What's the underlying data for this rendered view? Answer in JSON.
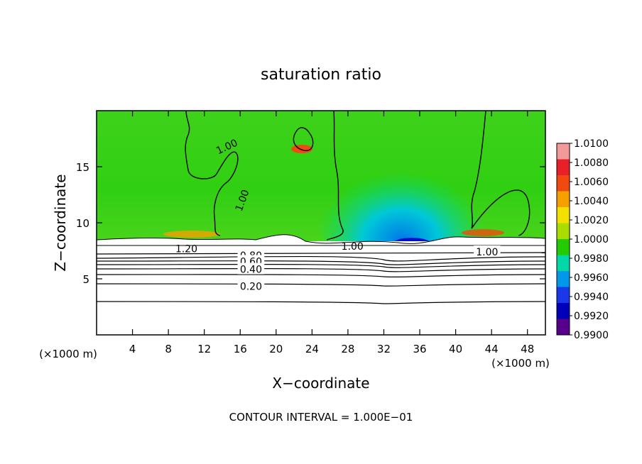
{
  "chart_data": {
    "type": "heatmap",
    "title": "saturation ratio",
    "xlabel": "X−coordinate",
    "ylabel": "Z−coordinate",
    "x_unit_left": "(×1000 m)",
    "x_unit_right": "(×1000 m)",
    "footer": "CONTOUR INTERVAL = 1.000E−01",
    "xlim": [
      0,
      50
    ],
    "ylim": [
      0,
      20
    ],
    "xticks": [
      4,
      8,
      12,
      16,
      20,
      24,
      28,
      32,
      36,
      40,
      44,
      48
    ],
    "yticks": [
      5,
      10,
      15
    ],
    "colorbar": {
      "levels": [
        "1.0100",
        "1.0080",
        "1.0060",
        "1.0040",
        "1.0020",
        "1.0000",
        "0.9980",
        "0.9960",
        "0.9940",
        "0.9920",
        "0.9900"
      ],
      "colors": [
        "#f29a9a",
        "#e8202a",
        "#f04a10",
        "#f6a000",
        "#f4e000",
        "#aadc00",
        "#22cc00",
        "#00d8a8",
        "#0098e8",
        "#1a38e8",
        "#0000b8",
        "#58008a"
      ]
    },
    "contour_labels": [
      {
        "text": "1.00",
        "x": 14.5,
        "y": 16.8,
        "angle": -25
      },
      {
        "text": "1.00",
        "x": 16.2,
        "y": 12.0,
        "angle": -70
      },
      {
        "text": "1.00",
        "x": 28.5,
        "y": 7.9,
        "angle": 0
      },
      {
        "text": "1.00",
        "x": 43.5,
        "y": 7.4,
        "angle": 0
      },
      {
        "text": "1.20",
        "x": 10.0,
        "y": 7.7,
        "angle": 0
      },
      {
        "text": "0.80",
        "x": 17.2,
        "y": 7.1,
        "angle": 0
      },
      {
        "text": "0.60",
        "x": 17.2,
        "y": 6.55,
        "angle": 0
      },
      {
        "text": "0.40",
        "x": 17.2,
        "y": 5.85,
        "angle": 0
      },
      {
        "text": "0.20",
        "x": 17.2,
        "y": 4.35,
        "angle": 0
      }
    ]
  }
}
